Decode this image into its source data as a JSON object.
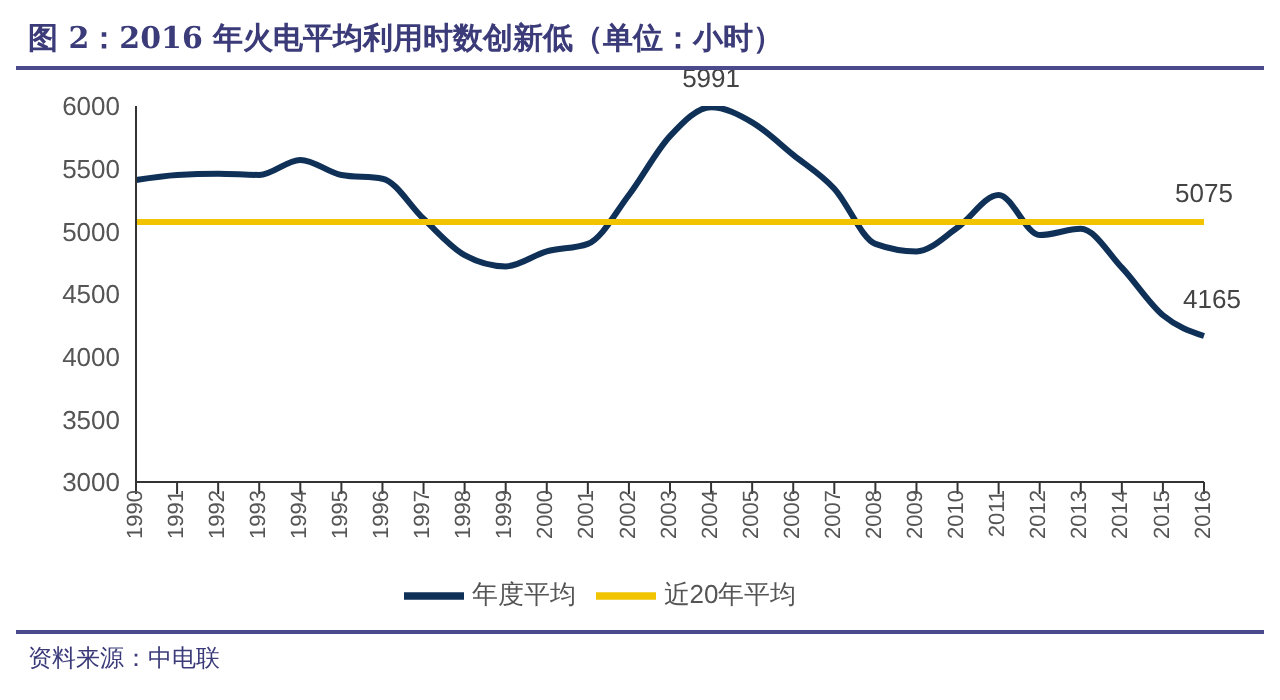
{
  "chart_data": {
    "type": "line",
    "title": "图 2：2016 年火电平均利用时数创新低（单位：小时）",
    "categories": [
      "1990",
      "1991",
      "1992",
      "1993",
      "1994",
      "1995",
      "1996",
      "1997",
      "1998",
      "1999",
      "2000",
      "2001",
      "2002",
      "2003",
      "2004",
      "2005",
      "2006",
      "2007",
      "2008",
      "2009",
      "2010",
      "2011",
      "2012",
      "2013",
      "2014",
      "2015",
      "2016"
    ],
    "series": [
      {
        "name": "年度平均",
        "color": "#0f3057",
        "values": [
          5410,
          5450,
          5460,
          5450,
          5570,
          5450,
          5420,
          5100,
          4810,
          4720,
          4840,
          4900,
          5290,
          5760,
          5991,
          5870,
          5610,
          5340,
          4900,
          4840,
          5030,
          5290,
          4970,
          5020,
          4710,
          4330,
          4165
        ],
        "value_labels": [
          null,
          null,
          null,
          null,
          null,
          null,
          null,
          null,
          null,
          null,
          null,
          null,
          null,
          null,
          "5991",
          null,
          null,
          null,
          null,
          null,
          null,
          null,
          null,
          null,
          null,
          null,
          "4165"
        ]
      },
      {
        "name": "近20年平均",
        "color": "#f2c400",
        "values": [
          5075,
          5075,
          5075,
          5075,
          5075,
          5075,
          5075,
          5075,
          5075,
          5075,
          5075,
          5075,
          5075,
          5075,
          5075,
          5075,
          5075,
          5075,
          5075,
          5075,
          5075,
          5075,
          5075,
          5075,
          5075,
          5075,
          5075
        ],
        "value_labels": [
          null,
          null,
          null,
          null,
          null,
          null,
          null,
          null,
          null,
          null,
          null,
          null,
          null,
          null,
          null,
          null,
          null,
          null,
          null,
          null,
          null,
          null,
          null,
          null,
          null,
          null,
          "5075"
        ]
      }
    ],
    "ylim": [
      3000,
      6000
    ],
    "yticks": [
      3000,
      3500,
      4000,
      4500,
      5000,
      5500,
      6000
    ],
    "legend": "bottom",
    "marker": "none",
    "line_style": "solid",
    "annotations": [
      "资料来源：中电联"
    ]
  }
}
